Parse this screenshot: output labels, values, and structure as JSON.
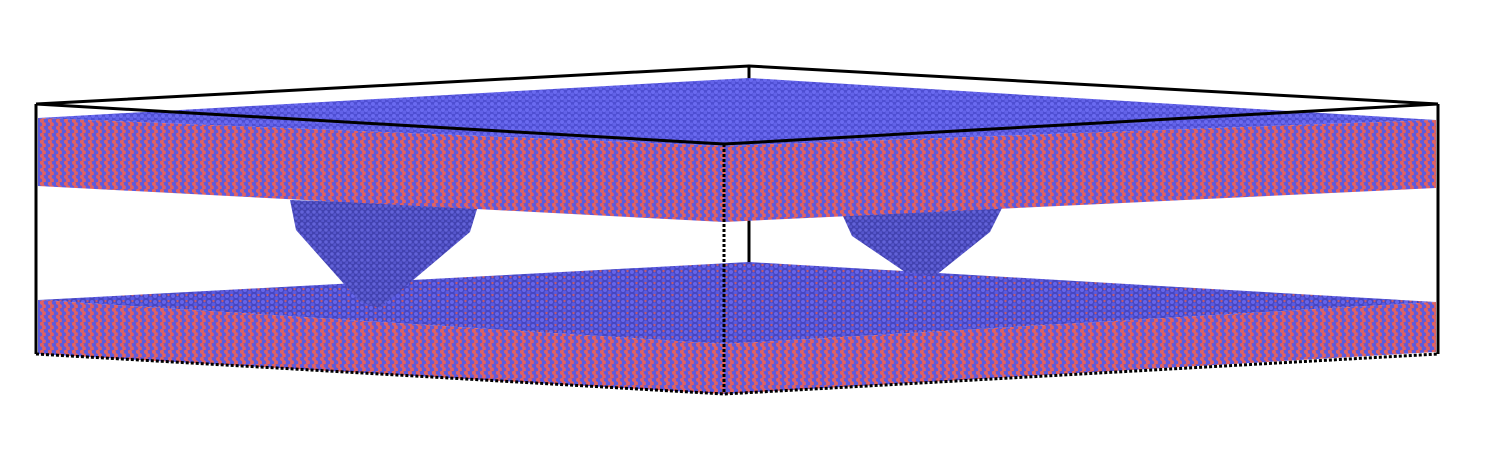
{
  "scene": {
    "description_visible_text": "",
    "colors": {
      "background": "#ffffff",
      "atom_blue": "#5b5be6",
      "atom_blue_dark": "#3a3aa8",
      "atom_red": "#e06060",
      "slab_mix": "#a05a8c",
      "box_line": "#000000"
    },
    "elements": {
      "simulation_box": "wireframe-box",
      "top_slab": "atomic-slab",
      "bottom_slab": "atomic-slab",
      "asperities": [
        "conical-asperity-left",
        "conical-asperity-right"
      ]
    }
  }
}
